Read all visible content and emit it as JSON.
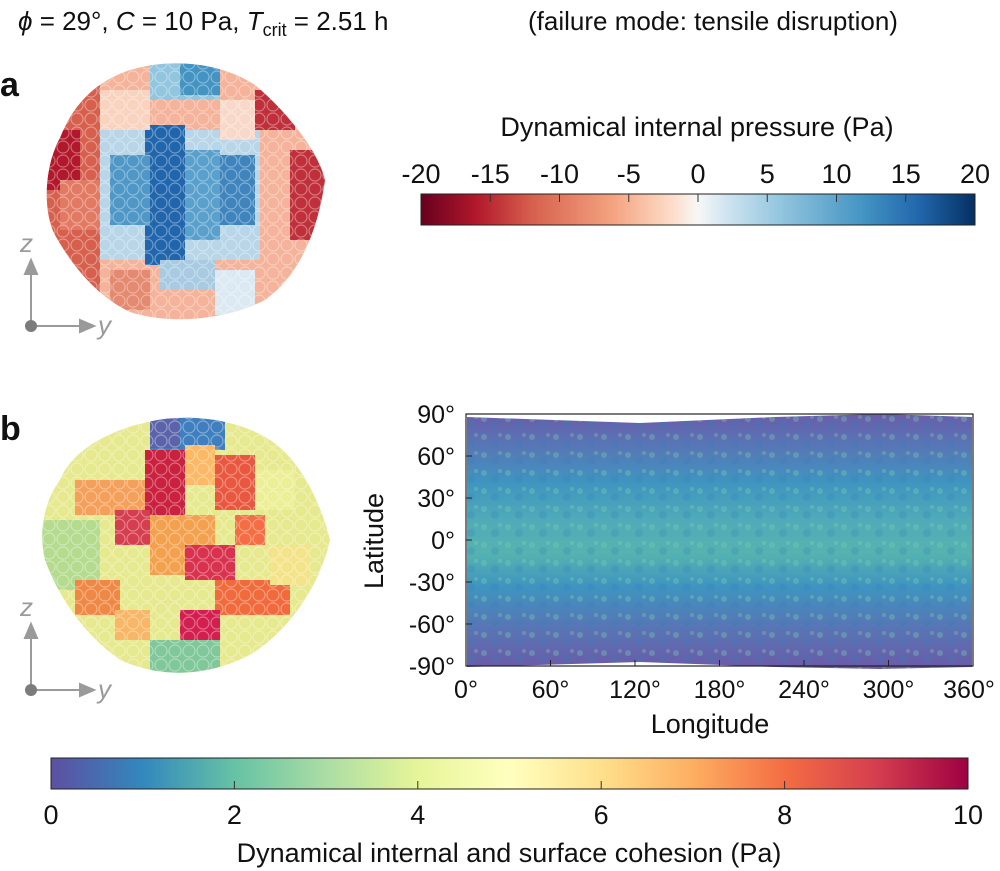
{
  "title": {
    "phi_symbol": "ϕ",
    "phi_value": " = 29°, ",
    "c_symbol": "C",
    "c_value": " = 10 Pa, ",
    "t_symbol": "T",
    "t_subscript": "crit",
    "t_value": " = 2.51 h",
    "mode": "(failure mode: tensile disruption)"
  },
  "panel_a": {
    "label": "a",
    "axes": {
      "vertical": "z",
      "horizontal": "y"
    },
    "colorbar": {
      "title": "Dynamical internal pressure (Pa)",
      "ticks": [
        "-20",
        "-15",
        "-10",
        "-5",
        "0",
        "5",
        "10",
        "15",
        "20"
      ],
      "min": -20,
      "max": 20,
      "colors": [
        "#67001f",
        "#b2182b",
        "#d6604d",
        "#f4a582",
        "#fddbc7",
        "#f7f7f7",
        "#d1e5f0",
        "#92c5de",
        "#4393c3",
        "#2166ac",
        "#053061"
      ]
    }
  },
  "panel_b": {
    "label": "b",
    "axes": {
      "vertical": "z",
      "horizontal": "y"
    },
    "map": {
      "ylabel": "Latitude",
      "xlabel": "Longitude",
      "yticks": [
        "90°",
        "60°",
        "30°",
        "0°",
        "-30°",
        "-60°",
        "-90°"
      ],
      "xticks": [
        "0°",
        "60°",
        "120°",
        "180°",
        "240°",
        "300°",
        "360°"
      ],
      "lat_range": [
        -90,
        90
      ],
      "lon_range": [
        0,
        360
      ]
    },
    "colorbar": {
      "title": "Dynamical internal and surface cohesion (Pa)",
      "ticks": [
        "0",
        "2",
        "4",
        "6",
        "8",
        "10"
      ],
      "min": 0,
      "max": 10,
      "colors": [
        "#5e4fa2",
        "#3288bd",
        "#66c2a5",
        "#abdda4",
        "#e6f598",
        "#ffffbf",
        "#fee08b",
        "#fdae61",
        "#f46d43",
        "#d53e4f",
        "#9e0142"
      ]
    }
  }
}
